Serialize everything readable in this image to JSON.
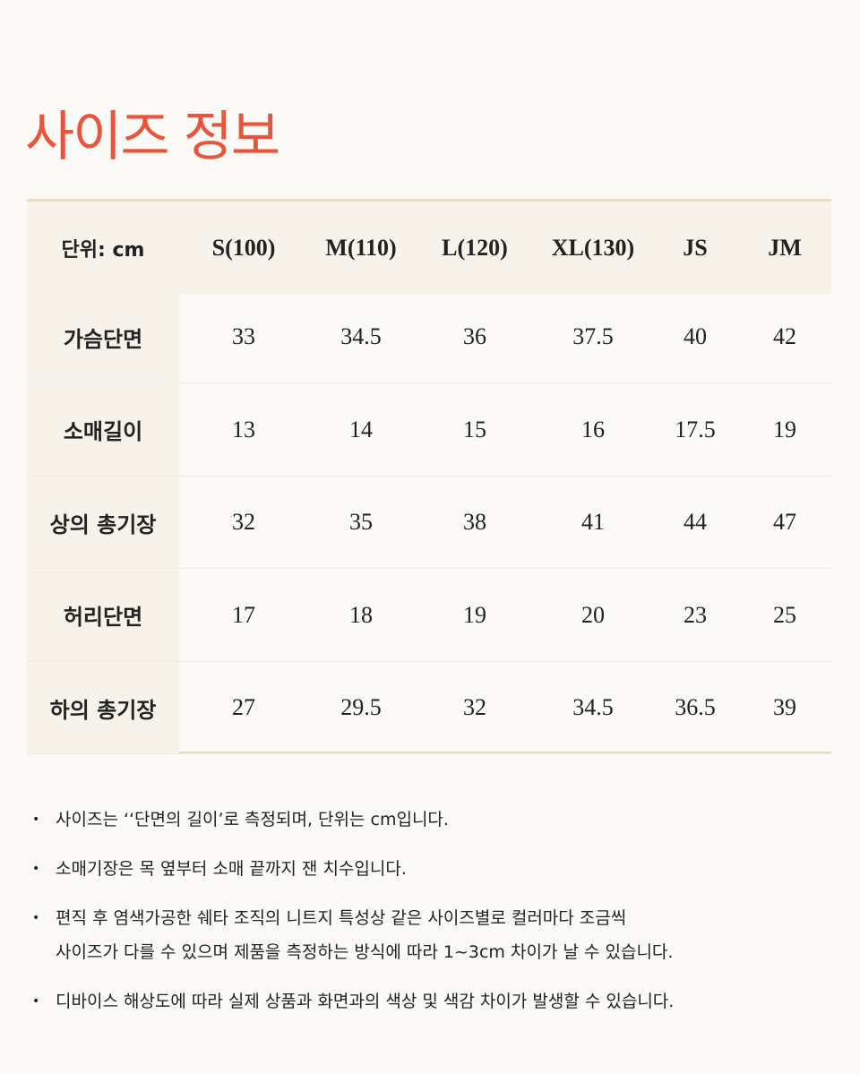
{
  "title": "사이즈 정보",
  "table": {
    "header": [
      "단위: cm",
      "S(100)",
      "M(110)",
      "L(120)",
      "XL(130)",
      "JS",
      "JM"
    ],
    "rows": [
      [
        "가슴단면",
        "33",
        "34.5",
        "36",
        "37.5",
        "40",
        "42"
      ],
      [
        "소매길이",
        "13",
        "14",
        "15",
        "16",
        "17.5",
        "19"
      ],
      [
        "상의 총기장",
        "32",
        "35",
        "38",
        "41",
        "44",
        "47"
      ],
      [
        "허리단면",
        "17",
        "18",
        "19",
        "20",
        "23",
        "25"
      ],
      [
        "하의 총기장",
        "27",
        "29.5",
        "32",
        "34.5",
        "36.5",
        "39"
      ]
    ]
  },
  "notes": [
    [
      "사이즈는  ‘‘단면의 길이’로 측정되며, 단위는 cm입니다."
    ],
    [
      "소매기장은 목 옆부터 소매 끝까지 잰 치수입니다."
    ],
    [
      "편직 후 염색가공한 쉐타 조직의 니트지 특성상 같은 사이즈별로 컬러마다 조금씩",
      "사이즈가 다를 수 있으며 제품을 측정하는 방식에 따라 1~3cm 차이가 날 수 있습니다."
    ],
    [
      "디바이스 해상도에 따라 실제 상품과 화면과의 색상 및 색감 차이가 발생할 수 있습니다."
    ]
  ]
}
